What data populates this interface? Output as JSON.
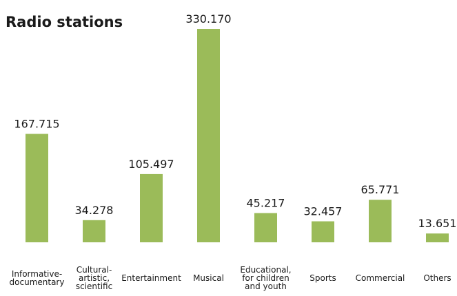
{
  "chart_data": {
    "type": "bar",
    "title": "Radio stations",
    "xlabel": "",
    "ylabel": "",
    "categories": [
      [
        "Informative-",
        "documentary"
      ],
      [
        "Cultural-",
        "artistic,",
        "scientific"
      ],
      [
        "Entertainment"
      ],
      [
        "Musical"
      ],
      [
        "Educational,",
        "for children",
        "and youth"
      ],
      [
        "Sports"
      ],
      [
        "Commercial"
      ],
      [
        "Others"
      ]
    ],
    "values": [
      167715,
      34278,
      105497,
      330170,
      45217,
      32457,
      65771,
      13651
    ],
    "value_labels": [
      "167.715",
      "34.278",
      "105.497",
      "330.170",
      "45.217",
      "32.457",
      "65.771",
      "13.651"
    ],
    "ylim": [
      0,
      330170
    ],
    "grid": false,
    "legend": "none",
    "bar_color": "#9bbb59"
  }
}
